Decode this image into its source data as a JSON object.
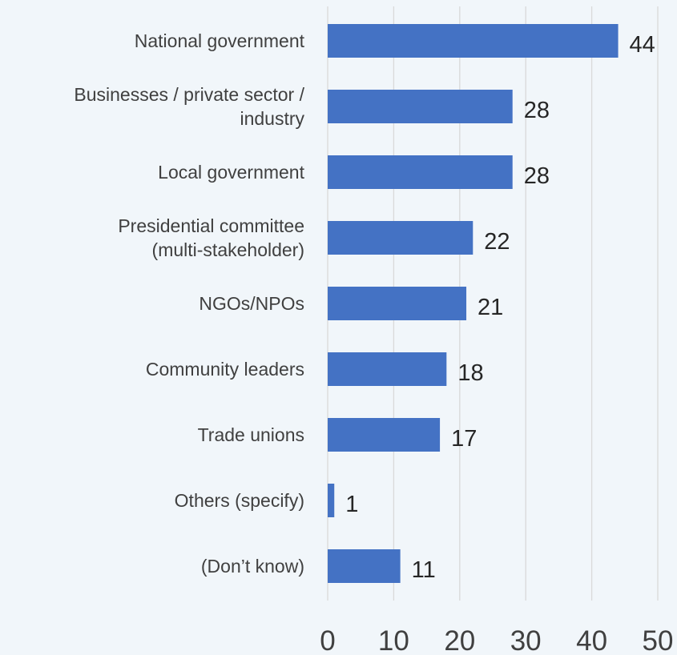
{
  "chart_data": {
    "type": "bar",
    "orientation": "horizontal",
    "title": "",
    "xlabel": "",
    "ylabel": "",
    "categories": [
      "National government",
      "Businesses / private sector / industry",
      "Local government",
      "Presidential committee (multi-stakeholder)",
      "NGOs/NPOs",
      "Community leaders",
      "Trade unions",
      "Others (specify)",
      "(Don’t know)"
    ],
    "category_lines": [
      [
        "National government"
      ],
      [
        "Businesses / private sector /",
        "industry"
      ],
      [
        "Local government"
      ],
      [
        "Presidential committee",
        "(multi-stakeholder)"
      ],
      [
        "NGOs/NPOs"
      ],
      [
        "Community leaders"
      ],
      [
        "Trade unions"
      ],
      [
        "Others (specify)"
      ],
      [
        "(Don’t know)"
      ]
    ],
    "values": [
      44,
      28,
      28,
      22,
      21,
      18,
      17,
      1,
      11
    ],
    "data_labels": [
      "44",
      "28",
      "28",
      "22",
      "21",
      "18",
      "17",
      "1",
      "11"
    ],
    "xlim": [
      0,
      50
    ],
    "x_ticks": [
      "0",
      "10",
      "20",
      "30",
      "40",
      "50"
    ],
    "grid": "vertical",
    "legend": "none",
    "colors": {
      "bar": "#4472c4",
      "grid": "#d9d9d9",
      "background": "#f1f6fa"
    }
  }
}
